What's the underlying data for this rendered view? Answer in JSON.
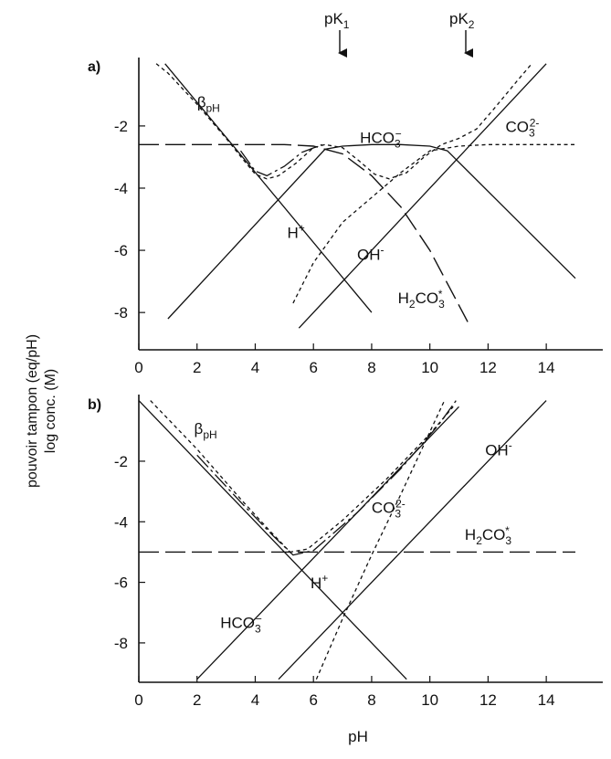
{
  "figure": {
    "ylabel_line1": "pouvoir tampon (eq/pH)",
    "ylabel_line2": "log conc. (M)",
    "xlabel": "pH",
    "pk_markers": [
      {
        "base": "pK",
        "sub": "1",
        "x": 6.5
      },
      {
        "base": "pK",
        "sub": "2",
        "x": 10.5
      }
    ]
  },
  "chart_data": [
    {
      "type": "line",
      "panel_label": "a)",
      "xlim": [
        0,
        15
      ],
      "ylim": [
        -9.2,
        0.2
      ],
      "xticks": [
        0,
        2,
        4,
        6,
        8,
        10,
        12,
        14
      ],
      "yticks": [
        -2,
        -4,
        -6,
        -8
      ],
      "series": [
        {
          "id": "H",
          "label": "H+",
          "label_base": "H",
          "label_sup": "+",
          "style": "solid",
          "points": [
            [
              0.9,
              0
            ],
            [
              8,
              -8
            ]
          ]
        },
        {
          "id": "OH",
          "label": "OH-",
          "label_base": "OH",
          "label_sup": "-",
          "style": "solid",
          "points": [
            [
              5.5,
              -8.5
            ],
            [
              14,
              0
            ]
          ]
        },
        {
          "id": "HCO3",
          "label": "HCO3-",
          "label_base": "HCO",
          "label_sub": "3",
          "label_sup": "−",
          "style": "solid",
          "points": [
            [
              1,
              -8.2
            ],
            [
              6.4,
              -2.75
            ],
            [
              7,
              -2.65
            ],
            [
              8,
              -2.6
            ],
            [
              9,
              -2.6
            ],
            [
              10,
              -2.65
            ],
            [
              10.6,
              -2.8
            ],
            [
              15,
              -6.9
            ]
          ]
        },
        {
          "id": "H2CO3",
          "label": "H2CO3*",
          "label_base": "H",
          "label_sub1": "2",
          "label_base2": "CO",
          "label_sub2": "3",
          "label_sup": "*",
          "style": "dashed",
          "points": [
            [
              0,
              -2.6
            ],
            [
              5,
              -2.6
            ],
            [
              6,
              -2.65
            ],
            [
              7,
              -2.9
            ],
            [
              8,
              -3.6
            ],
            [
              9,
              -4.6
            ],
            [
              10,
              -6
            ],
            [
              11.3,
              -8.3
            ]
          ]
        },
        {
          "id": "CO3",
          "label": "CO32-",
          "label_base": "CO",
          "label_sub": "3",
          "label_sup": "2-",
          "style": "dotted",
          "points": [
            [
              5.3,
              -7.7
            ],
            [
              6,
              -6.4
            ],
            [
              7,
              -5.1
            ],
            [
              8,
              -4.3
            ],
            [
              9,
              -3.5
            ],
            [
              10,
              -2.8
            ],
            [
              11,
              -2.65
            ],
            [
              12,
              -2.6
            ],
            [
              15,
              -2.6
            ]
          ]
        },
        {
          "id": "beta",
          "label": "βpH",
          "label_base": "β",
          "label_sub": "pH",
          "style": "dotted",
          "points": [
            [
              0.6,
              0
            ],
            [
              1,
              -0.3
            ],
            [
              2,
              -1.3
            ],
            [
              3,
              -2.4
            ],
            [
              3.6,
              -3.1
            ],
            [
              4,
              -3.55
            ],
            [
              4.4,
              -3.7
            ],
            [
              4.8,
              -3.6
            ],
            [
              5.4,
              -3.2
            ],
            [
              6,
              -2.7
            ],
            [
              6.4,
              -2.6
            ],
            [
              7,
              -2.7
            ],
            [
              7.6,
              -3.15
            ],
            [
              8.1,
              -3.55
            ],
            [
              8.6,
              -3.7
            ],
            [
              9.2,
              -3.5
            ],
            [
              9.8,
              -3.0
            ],
            [
              10.4,
              -2.6
            ],
            [
              11,
              -2.4
            ],
            [
              11.6,
              -2.1
            ],
            [
              12.2,
              -1.45
            ],
            [
              13,
              -0.55
            ],
            [
              13.5,
              0
            ]
          ]
        },
        {
          "id": "beta_outline",
          "style": "dashdot",
          "points": [
            [
              3.5,
              -2.8
            ],
            [
              4,
              -3.45
            ],
            [
              4.4,
              -3.6
            ],
            [
              5,
              -3.3
            ],
            [
              5.6,
              -2.85
            ],
            [
              6.3,
              -2.6
            ]
          ]
        }
      ],
      "labels": {
        "beta": {
          "x": 2.0,
          "y": -1.4
        },
        "HCO3": {
          "x": 7.6,
          "y": -2.55
        },
        "CO3": {
          "x": 12.6,
          "y": -2.2
        },
        "H": {
          "x": 5.1,
          "y": -5.6
        },
        "OH": {
          "x": 7.5,
          "y": -6.3
        },
        "H2CO3": {
          "x": 8.9,
          "y": -7.7
        }
      }
    },
    {
      "type": "line",
      "panel_label": "b)",
      "xlim": [
        0,
        15
      ],
      "ylim": [
        -9.3,
        0.2
      ],
      "xticks": [
        0,
        2,
        4,
        6,
        8,
        10,
        12,
        14
      ],
      "yticks": [
        -2,
        -4,
        -6,
        -8
      ],
      "series": [
        {
          "id": "H",
          "label": "H+",
          "label_base": "H",
          "label_sup": "+",
          "style": "solid",
          "points": [
            [
              0,
              0
            ],
            [
              9.2,
              -9.2
            ]
          ]
        },
        {
          "id": "OH",
          "label": "OH-",
          "label_base": "OH",
          "label_sup": "-",
          "style": "solid",
          "points": [
            [
              4.8,
              -9.2
            ],
            [
              14,
              0
            ]
          ]
        },
        {
          "id": "HCO3",
          "label": "HCO3-",
          "label_base": "HCO",
          "label_sub": "3",
          "label_sup": "−",
          "style": "solid",
          "points": [
            [
              2,
              -9.2
            ],
            [
              11,
              -0.2
            ]
          ]
        },
        {
          "id": "H2CO3",
          "label": "H2CO3*",
          "label_base": "H",
          "label_sub1": "2",
          "label_base2": "CO",
          "label_sub2": "3",
          "label_sup": "*",
          "style": "dashed",
          "points": [
            [
              0,
              -5
            ],
            [
              15,
              -5
            ]
          ]
        },
        {
          "id": "CO3",
          "label": "CO32-",
          "label_base": "CO",
          "label_sub": "3",
          "label_sup": "2-",
          "style": "dotted",
          "points": [
            [
              6.1,
              -9.2
            ],
            [
              7,
              -7.2
            ],
            [
              8,
              -5.1
            ],
            [
              9,
              -3.1
            ],
            [
              10.5,
              0
            ]
          ]
        },
        {
          "id": "beta",
          "label": "βpH",
          "label_base": "β",
          "label_sub": "pH",
          "style": "dotted",
          "points": [
            [
              0.4,
              0
            ],
            [
              2,
              -1.6
            ],
            [
              3.5,
              -3.25
            ],
            [
              4.5,
              -4.3
            ],
            [
              5.2,
              -5.0
            ],
            [
              5.8,
              -4.9
            ],
            [
              7,
              -3.95
            ],
            [
              8.5,
              -2.6
            ],
            [
              10,
              -1.1
            ],
            [
              10.8,
              -0.2
            ]
          ]
        },
        {
          "id": "beta_outline",
          "style": "dashdot",
          "points": [
            [
              2,
              -1.8
            ],
            [
              3.5,
              -3.35
            ],
            [
              4.6,
              -4.45
            ],
            [
              5.3,
              -5.1
            ],
            [
              6,
              -4.95
            ],
            [
              7.5,
              -3.7
            ],
            [
              9,
              -2.25
            ],
            [
              10.3,
              -0.8
            ],
            [
              10.9,
              0
            ]
          ]
        }
      ],
      "labels": {
        "beta": {
          "x": 1.9,
          "y": -1.1
        },
        "CO3": {
          "x": 8.0,
          "y": -3.7
        },
        "OH": {
          "x": 11.9,
          "y": -1.8
        },
        "H2CO3": {
          "x": 11.2,
          "y": -4.6
        },
        "H": {
          "x": 5.9,
          "y": -6.2
        },
        "HCO3": {
          "x": 2.8,
          "y": -7.5
        }
      }
    }
  ]
}
